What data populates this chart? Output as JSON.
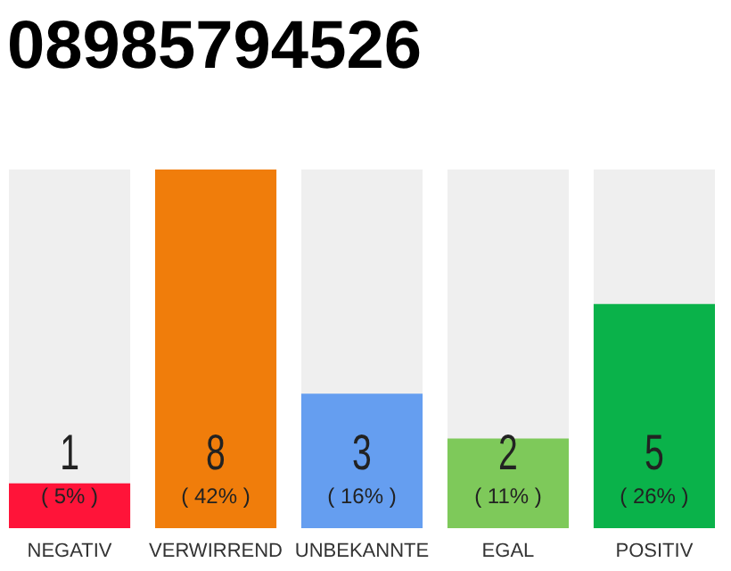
{
  "chart_data": {
    "type": "bar",
    "title": "08985794526",
    "categories": [
      "NEGATIV",
      "VERWIRREND",
      "UNBEKANNTE",
      "EGAL",
      "POSITIV"
    ],
    "values": [
      1,
      8,
      3,
      2,
      5
    ],
    "colors": [
      "#ff1439",
      "#f07d0b",
      "#659ef0",
      "#7ec95a",
      "#0ab24a"
    ],
    "data_labels": true,
    "annotations": [
      "( 5% )",
      "( 42% )",
      "( 16% )",
      "( 11% )",
      "( 26% )"
    ],
    "grid": false
  }
}
